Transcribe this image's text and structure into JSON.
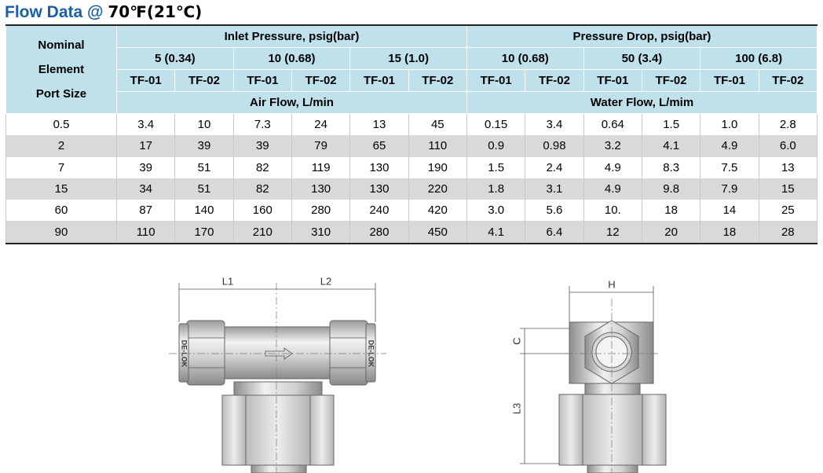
{
  "title": {
    "label": "Flow Data @",
    "condition": "70℉(21℃)"
  },
  "table": {
    "corner": [
      "Nominal",
      "Element",
      "Port Size"
    ],
    "groups": [
      {
        "label": "Inlet Pressure, psig(bar)",
        "pressures": [
          "5 (0.34)",
          "10 (0.68)",
          "15 (1.0)"
        ],
        "medium": "Air Flow, L/min"
      },
      {
        "label": "Pressure Drop, psig(bar)",
        "pressures": [
          "10 (0.68)",
          "50 (3.4)",
          "100 (6.8)"
        ],
        "medium": "Water Flow, L/mim"
      }
    ],
    "models": [
      "TF-01",
      "TF-02",
      "TF-01",
      "TF-02",
      "TF-01",
      "TF-02",
      "TF-01",
      "TF-02",
      "TF-01",
      "TF-02",
      "TF-01",
      "TF-02"
    ],
    "rows": [
      [
        "0.5",
        "3.4",
        "10",
        "7.3",
        "24",
        "13",
        "45",
        "0.15",
        "3.4",
        "0.64",
        "1.5",
        "1.0",
        "2.8"
      ],
      [
        "2",
        "17",
        "39",
        "39",
        "79",
        "65",
        "110",
        "0.9",
        "0.98",
        "3.2",
        "4.1",
        "4.9",
        "6.0"
      ],
      [
        "7",
        "39",
        "51",
        "82",
        "119",
        "130",
        "190",
        "1.5",
        "2.4",
        "4.9",
        "8.3",
        "7.5",
        "13"
      ],
      [
        "15",
        "34",
        "51",
        "82",
        "130",
        "130",
        "220",
        "1.8",
        "3.1",
        "4.9",
        "9.8",
        "7.9",
        "15"
      ],
      [
        "60",
        "87",
        "140",
        "160",
        "280",
        "240",
        "420",
        "3.0",
        "5.6",
        "10.",
        "18",
        "14",
        "25"
      ],
      [
        "90",
        "110",
        "170",
        "210",
        "310",
        "280",
        "450",
        "4.1",
        "6.4",
        "12",
        "20",
        "18",
        "28"
      ]
    ]
  },
  "drawings": {
    "front": {
      "l1": "L1",
      "l2": "L2",
      "brand": "DE-LOK"
    },
    "side": {
      "h": "H",
      "c": "C",
      "l3": "L3"
    }
  }
}
